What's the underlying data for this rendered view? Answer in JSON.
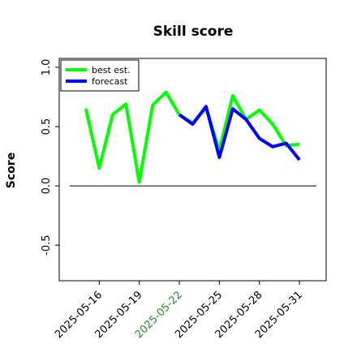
{
  "chart_data": {
    "type": "line",
    "title": "Skill score",
    "ylabel": "Score",
    "x": [
      "2025-05-15",
      "2025-05-16",
      "2025-05-17",
      "2025-05-18",
      "2025-05-19",
      "2025-05-20",
      "2025-05-21",
      "2025-05-22",
      "2025-05-23",
      "2025-05-24",
      "2025-05-25",
      "2025-05-26",
      "2025-05-27",
      "2025-05-28",
      "2025-05-29",
      "2025-05-30",
      "2025-05-31"
    ],
    "series": [
      {
        "name": "best est.",
        "color": "#00ff00",
        "values": [
          0.65,
          0.15,
          0.6,
          0.69,
          0.03,
          0.68,
          0.79,
          0.6,
          0.53,
          0.66,
          0.3,
          0.76,
          0.56,
          0.64,
          0.52,
          0.34,
          0.35
        ]
      },
      {
        "name": "forecast",
        "color": "#0000ff",
        "values": [
          null,
          null,
          null,
          null,
          null,
          null,
          null,
          0.6,
          0.52,
          0.67,
          0.24,
          0.65,
          0.56,
          0.4,
          0.33,
          0.36,
          0.22
        ]
      }
    ],
    "xlim": [
      "2025-05-13",
      "2025-06-02"
    ],
    "xticks": [
      "2025-05-16",
      "2025-05-19",
      "2025-05-22",
      "2025-05-25",
      "2025-05-28",
      "2025-05-31"
    ],
    "xtick_colors": [
      "#000000",
      "#000000",
      "#228b22",
      "#000000",
      "#000000",
      "#000000"
    ],
    "ylim": [
      -0.8,
      1.075
    ],
    "yticks": [
      {
        "value": -0.5,
        "label": "-0.5"
      },
      {
        "value": 0,
        "label": "0.0"
      },
      {
        "value": 0.5,
        "label": "0.5"
      },
      {
        "value": 1,
        "label": "1.0"
      }
    ],
    "reference_line": 0,
    "legend": "top-left"
  }
}
